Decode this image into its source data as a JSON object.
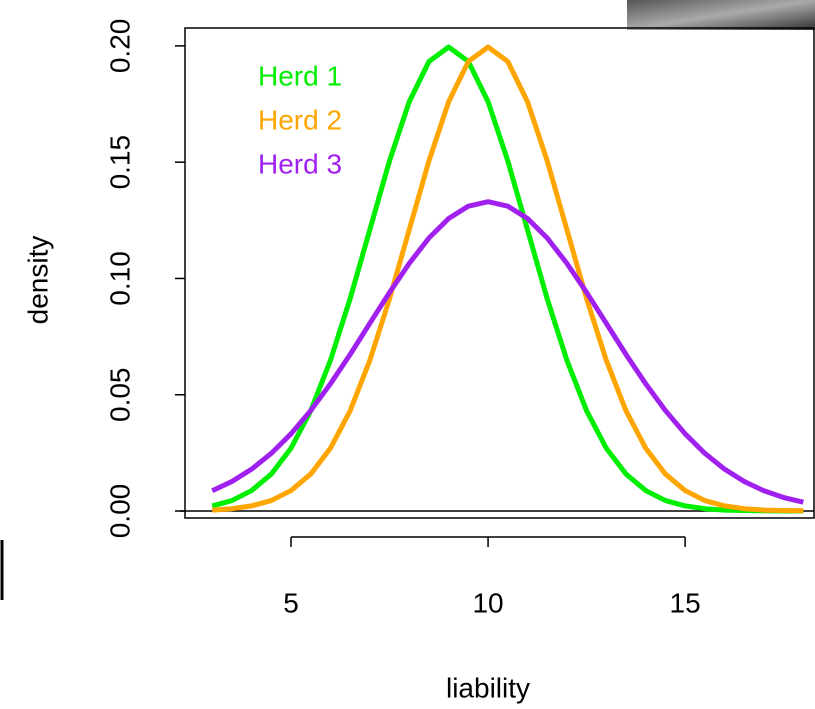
{
  "chart_data": {
    "type": "line",
    "x_label": "liability",
    "y_label": "density",
    "x": [
      3,
      3.5,
      4,
      4.5,
      5,
      5.5,
      6,
      6.5,
      7,
      7.5,
      8,
      8.5,
      9,
      9.5,
      10,
      10.5,
      11,
      11.5,
      12,
      12.5,
      13,
      13.5,
      14,
      14.5,
      15,
      15.5,
      16,
      16.5,
      17,
      17.5,
      18
    ],
    "series": [
      {
        "name": "Herd 1",
        "color": "#00ee00",
        "values": [
          0.0022,
          0.0045,
          0.0088,
          0.0159,
          0.027,
          0.0431,
          0.0648,
          0.0913,
          0.121,
          0.1506,
          0.176,
          0.1933,
          0.1995,
          0.1933,
          0.176,
          0.1506,
          0.121,
          0.0913,
          0.0648,
          0.0431,
          0.027,
          0.0159,
          0.0088,
          0.0045,
          0.0022,
          0.001,
          0.0004,
          0.0002,
          0.0001,
          0,
          0
        ]
      },
      {
        "name": "Herd 2",
        "color": "#ffa500",
        "values": [
          0.0004,
          0.001,
          0.0022,
          0.0045,
          0.0088,
          0.0159,
          0.027,
          0.0431,
          0.0648,
          0.0913,
          0.121,
          0.1506,
          0.176,
          0.1933,
          0.1995,
          0.1933,
          0.176,
          0.1506,
          0.121,
          0.0913,
          0.0648,
          0.0431,
          0.027,
          0.0159,
          0.0088,
          0.0045,
          0.0022,
          0.001,
          0.0004,
          0.0002,
          0.0001
        ]
      },
      {
        "name": "Herd 3",
        "color": "#a020f0",
        "values": [
          0.0087,
          0.0127,
          0.018,
          0.0248,
          0.0332,
          0.0432,
          0.0547,
          0.0673,
          0.0807,
          0.094,
          0.1065,
          0.1174,
          0.1258,
          0.1311,
          0.133,
          0.1311,
          0.1258,
          0.1174,
          0.1065,
          0.094,
          0.0807,
          0.0673,
          0.0547,
          0.0432,
          0.0332,
          0.0248,
          0.018,
          0.0127,
          0.0087,
          0.0058,
          0.0038
        ]
      }
    ],
    "xlim": [
      2.31,
      18.27
    ],
    "ylim": [
      -0.003,
      0.2077
    ],
    "xticks": [
      5,
      10,
      15
    ],
    "yticks": [
      {
        "value": 0,
        "label": "0.00"
      },
      {
        "value": 0.05,
        "label": "0.05"
      },
      {
        "value": 0.1,
        "label": "0.10"
      },
      {
        "value": 0.15,
        "label": "0.15"
      },
      {
        "value": 0.2,
        "label": "0.20"
      }
    ],
    "hline": 0,
    "legend": "top-left"
  }
}
